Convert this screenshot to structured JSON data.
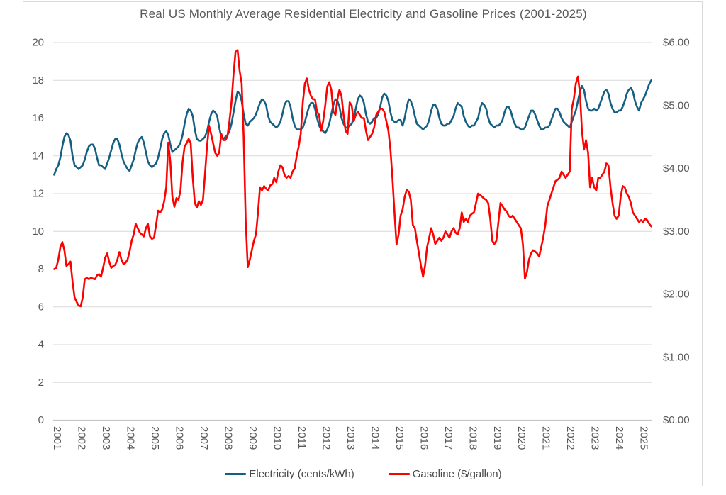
{
  "chart_data": {
    "type": "line",
    "title": "Real US Monthly Average Residential Electricity and Gasoline Prices (2001-2025)",
    "grid": true,
    "grid_color": "#d9d9d9",
    "axis_line_color": "#c6c6c6",
    "text_color": "#595959",
    "legend_position": "bottom",
    "x_tick_labels": [
      "2001",
      "2002",
      "2003",
      "2004",
      "2005",
      "2006",
      "2007",
      "2008",
      "2009",
      "2010",
      "2011",
      "2012",
      "2013",
      "2014",
      "2015",
      "2016",
      "2017",
      "2018",
      "2019",
      "2020",
      "2021",
      "2022",
      "2023",
      "2024",
      "2025"
    ],
    "left_axis": {
      "min": 0,
      "max": 20,
      "tick_step": 2,
      "tick_labels": [
        "0",
        "2",
        "4",
        "6",
        "8",
        "10",
        "12",
        "14",
        "16",
        "18",
        "20"
      ]
    },
    "right_axis": {
      "min": 0,
      "max": 6,
      "tick_step": 1,
      "tick_labels": [
        "$0.00",
        "$1.00",
        "$2.00",
        "$3.00",
        "$4.00",
        "$5.00",
        "$6.00"
      ]
    },
    "series": [
      {
        "id": "electricity-line",
        "name": "Electricity (cents/kWh)",
        "axis": "left",
        "color": "#156082",
        "monthly_start": "2001-01",
        "values": [
          13.0,
          13.3,
          13.5,
          13.9,
          14.5,
          15.0,
          15.2,
          15.1,
          14.8,
          14.0,
          13.5,
          13.4,
          13.3,
          13.4,
          13.5,
          13.8,
          14.2,
          14.5,
          14.6,
          14.6,
          14.4,
          13.9,
          13.5,
          13.5,
          13.4,
          13.3,
          13.6,
          13.9,
          14.3,
          14.7,
          14.9,
          14.9,
          14.6,
          14.1,
          13.7,
          13.5,
          13.3,
          13.2,
          13.5,
          13.8,
          14.3,
          14.7,
          14.9,
          15.0,
          14.7,
          14.2,
          13.7,
          13.5,
          13.4,
          13.5,
          13.6,
          13.9,
          14.4,
          14.9,
          15.2,
          15.3,
          15.1,
          14.6,
          14.2,
          14.3,
          14.4,
          14.5,
          14.7,
          15.1,
          15.7,
          16.2,
          16.5,
          16.4,
          16.1,
          15.4,
          14.9,
          14.8,
          14.8,
          14.9,
          15.0,
          15.3,
          15.8,
          16.2,
          16.4,
          16.3,
          16.1,
          15.5,
          15.0,
          14.9,
          15.0,
          15.1,
          15.3,
          15.7,
          16.3,
          16.9,
          17.4,
          17.3,
          16.9,
          16.2,
          15.7,
          15.6,
          15.8,
          15.9,
          16.0,
          16.2,
          16.5,
          16.8,
          17.0,
          16.9,
          16.7,
          16.1,
          15.8,
          15.7,
          15.6,
          15.5,
          15.6,
          15.8,
          16.2,
          16.7,
          16.9,
          16.9,
          16.6,
          16.0,
          15.6,
          15.4,
          15.4,
          15.4,
          15.5,
          15.8,
          16.2,
          16.6,
          16.8,
          16.8,
          16.5,
          16.0,
          15.6,
          15.4,
          15.3,
          15.2,
          15.4,
          15.7,
          16.2,
          16.7,
          17.0,
          16.9,
          16.6,
          16.0,
          15.7,
          15.5,
          15.5,
          15.6,
          15.7,
          16.0,
          16.5,
          17.0,
          17.2,
          17.1,
          16.8,
          16.2,
          15.8,
          15.7,
          15.8,
          16.0,
          16.0,
          16.2,
          16.6,
          17.1,
          17.3,
          17.2,
          16.9,
          16.3,
          15.9,
          15.8,
          15.8,
          15.9,
          15.9,
          15.6,
          16.0,
          16.6,
          17.0,
          16.9,
          16.6,
          16.1,
          15.7,
          15.6,
          15.5,
          15.4,
          15.5,
          15.6,
          15.9,
          16.4,
          16.7,
          16.7,
          16.5,
          16.0,
          15.7,
          15.6,
          15.6,
          15.7,
          15.7,
          15.9,
          16.1,
          16.5,
          16.8,
          16.7,
          16.6,
          16.1,
          15.8,
          15.6,
          15.5,
          15.6,
          15.6,
          15.8,
          16.0,
          16.5,
          16.8,
          16.7,
          16.5,
          16.0,
          15.7,
          15.6,
          15.5,
          15.6,
          15.6,
          15.7,
          15.9,
          16.3,
          16.6,
          16.6,
          16.4,
          16.0,
          15.7,
          15.5,
          15.5,
          15.4,
          15.4,
          15.5,
          15.8,
          16.1,
          16.4,
          16.4,
          16.2,
          15.9,
          15.6,
          15.4,
          15.4,
          15.5,
          15.5,
          15.6,
          15.9,
          16.2,
          16.5,
          16.5,
          16.3,
          16.0,
          15.8,
          15.7,
          15.6,
          15.5,
          15.8,
          16.1,
          16.4,
          16.9,
          17.4,
          17.7,
          17.5,
          16.9,
          16.5,
          16.4,
          16.4,
          16.5,
          16.4,
          16.5,
          16.8,
          17.1,
          17.4,
          17.5,
          17.3,
          16.8,
          16.5,
          16.3,
          16.3,
          16.4,
          16.4,
          16.6,
          16.9,
          17.3,
          17.5,
          17.6,
          17.4,
          16.9,
          16.6,
          16.4,
          16.8,
          17.0,
          17.2,
          17.5,
          17.8,
          18.0
        ]
      },
      {
        "id": "gasoline-line",
        "name": "Gasoline ($/gallon)",
        "axis": "right",
        "color": "#ff0000",
        "monthly_start": "2001-01",
        "values": [
          2.4,
          2.42,
          2.55,
          2.75,
          2.83,
          2.7,
          2.45,
          2.48,
          2.52,
          2.2,
          1.95,
          1.88,
          1.82,
          1.81,
          1.95,
          2.24,
          2.26,
          2.24,
          2.26,
          2.25,
          2.24,
          2.3,
          2.32,
          2.28,
          2.42,
          2.58,
          2.65,
          2.52,
          2.42,
          2.45,
          2.47,
          2.55,
          2.67,
          2.55,
          2.48,
          2.5,
          2.55,
          2.68,
          2.85,
          2.95,
          3.12,
          3.05,
          2.98,
          2.95,
          2.92,
          3.05,
          3.12,
          2.92,
          2.88,
          2.9,
          3.1,
          3.33,
          3.3,
          3.35,
          3.48,
          3.7,
          4.41,
          4.1,
          3.55,
          3.39,
          3.53,
          3.5,
          3.65,
          4.1,
          4.35,
          4.4,
          4.47,
          4.4,
          3.85,
          3.45,
          3.38,
          3.48,
          3.42,
          3.5,
          3.9,
          4.35,
          4.68,
          4.55,
          4.4,
          4.25,
          4.2,
          4.25,
          4.55,
          4.45,
          4.45,
          4.5,
          4.75,
          5.05,
          5.5,
          5.85,
          5.88,
          5.55,
          5.35,
          4.5,
          3.15,
          2.43,
          2.55,
          2.7,
          2.85,
          2.95,
          3.3,
          3.7,
          3.65,
          3.72,
          3.68,
          3.65,
          3.73,
          3.75,
          3.85,
          3.78,
          3.95,
          4.05,
          4.02,
          3.9,
          3.85,
          3.88,
          3.85,
          3.95,
          4.0,
          4.2,
          4.35,
          4.55,
          5.05,
          5.35,
          5.43,
          5.25,
          5.15,
          5.1,
          5.1,
          4.9,
          4.85,
          4.6,
          4.75,
          5.0,
          5.3,
          5.37,
          5.25,
          4.9,
          4.85,
          5.1,
          5.25,
          5.15,
          4.85,
          4.6,
          4.55,
          5.05,
          5.0,
          4.75,
          4.85,
          4.9,
          4.85,
          4.8,
          4.8,
          4.6,
          4.45,
          4.5,
          4.55,
          4.65,
          4.85,
          4.9,
          4.95,
          4.95,
          4.9,
          4.75,
          4.6,
          4.3,
          3.85,
          3.3,
          2.79,
          2.95,
          3.25,
          3.35,
          3.55,
          3.66,
          3.63,
          3.5,
          3.1,
          3.05,
          2.85,
          2.65,
          2.45,
          2.28,
          2.45,
          2.75,
          2.9,
          3.05,
          2.95,
          2.8,
          2.85,
          2.9,
          2.85,
          2.9,
          3.0,
          2.95,
          2.9,
          3.0,
          3.05,
          2.98,
          2.95,
          3.05,
          3.3,
          3.15,
          3.2,
          3.15,
          3.25,
          3.28,
          3.3,
          3.45,
          3.6,
          3.58,
          3.55,
          3.52,
          3.5,
          3.45,
          3.2,
          2.85,
          2.8,
          2.85,
          3.15,
          3.45,
          3.4,
          3.35,
          3.32,
          3.25,
          3.22,
          3.25,
          3.2,
          3.15,
          3.1,
          3.05,
          2.8,
          2.25,
          2.35,
          2.55,
          2.65,
          2.7,
          2.68,
          2.65,
          2.6,
          2.75,
          2.9,
          3.1,
          3.4,
          3.5,
          3.6,
          3.7,
          3.8,
          3.82,
          3.85,
          3.95,
          3.9,
          3.85,
          3.9,
          3.95,
          4.95,
          5.1,
          5.35,
          5.46,
          5.2,
          4.6,
          4.3,
          4.45,
          4.25,
          3.7,
          3.85,
          3.7,
          3.65,
          3.85,
          3.85,
          3.9,
          3.95,
          4.08,
          4.05,
          3.7,
          3.45,
          3.25,
          3.2,
          3.25,
          3.55,
          3.72,
          3.7,
          3.6,
          3.55,
          3.45,
          3.3,
          3.25,
          3.2,
          3.15,
          3.18,
          3.15,
          3.2,
          3.18,
          3.12,
          3.08
        ]
      }
    ]
  },
  "legend": {
    "items": [
      {
        "label": "Electricity (cents/kWh)",
        "color": "#156082"
      },
      {
        "label": "Gasoline ($/gallon)",
        "color": "#ff0000"
      }
    ]
  }
}
